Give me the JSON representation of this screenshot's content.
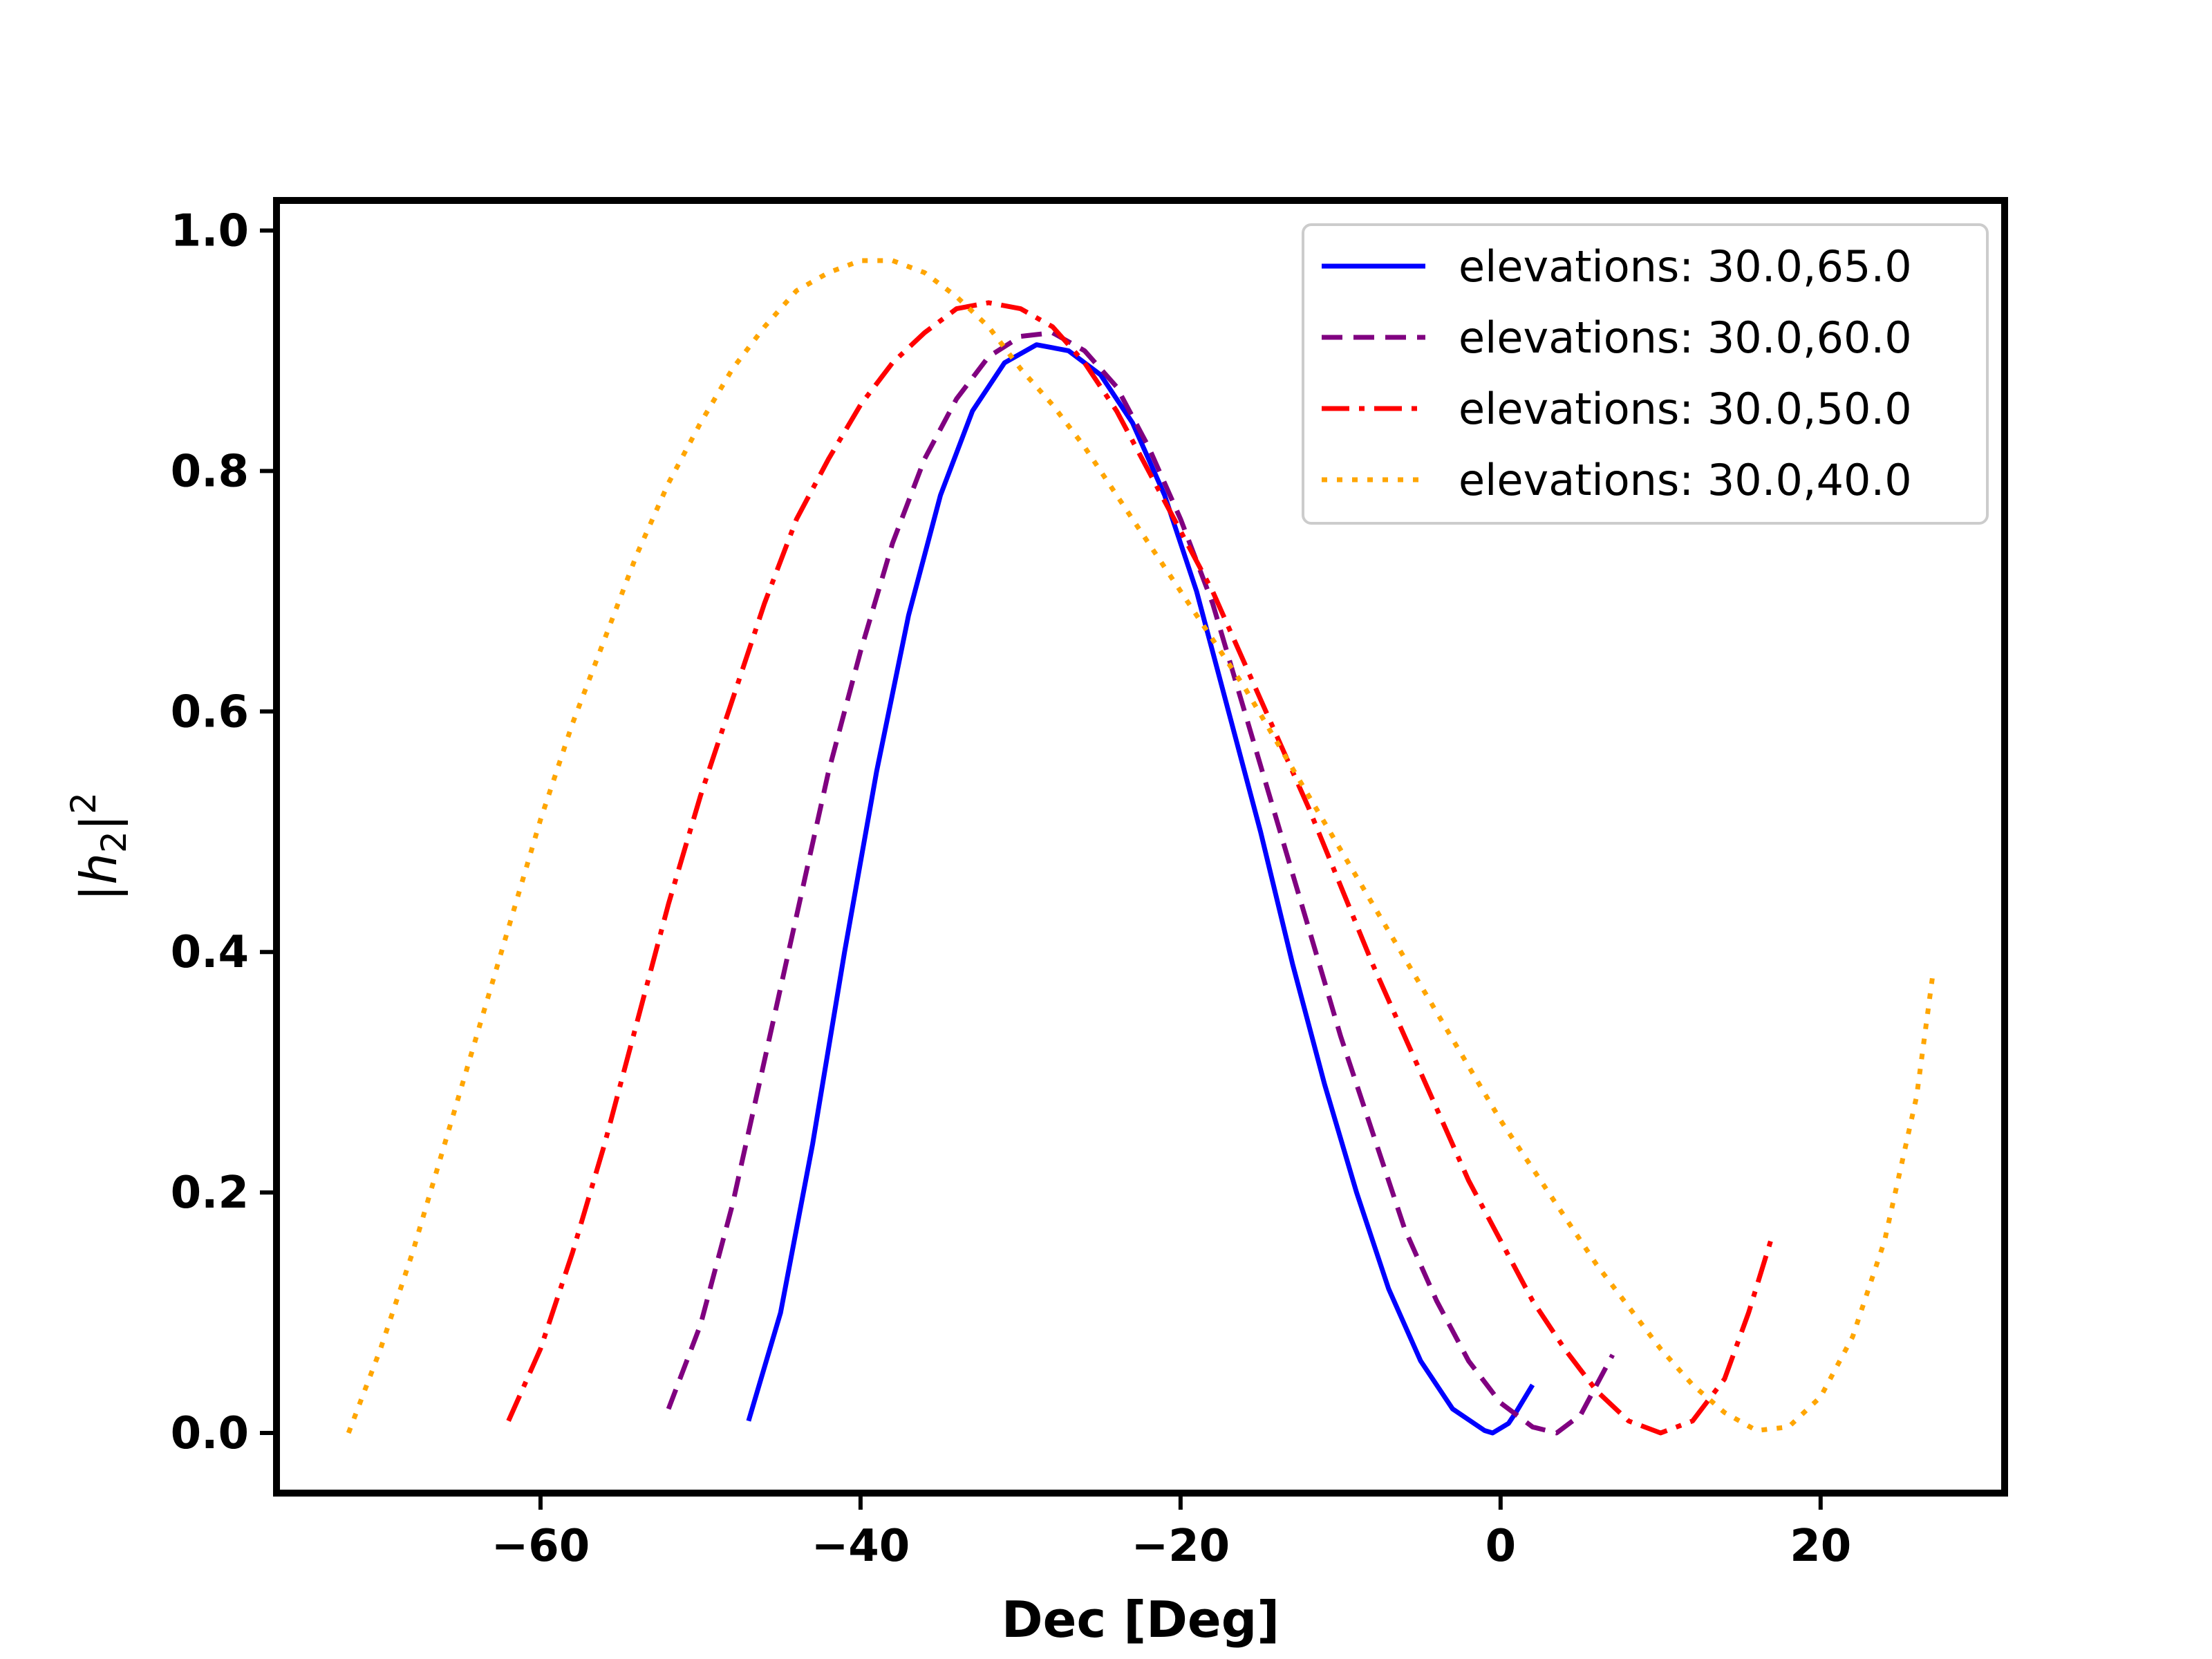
{
  "chart_data": {
    "type": "line",
    "xlabel": "Dec [Deg]",
    "ylabel": "|h2|^2",
    "ylabel_parts": {
      "bar_left": "|",
      "base": "h",
      "sub": "2",
      "bar_right": "|",
      "sup": "2"
    },
    "xlim": [
      -76.5,
      31.5
    ],
    "ylim": [
      -0.05,
      1.025
    ],
    "x_ticks": [
      -60,
      -40,
      -20,
      0,
      20
    ],
    "x_tick_labels": [
      "−60",
      "−40",
      "−20",
      "0",
      "20"
    ],
    "y_ticks": [
      0.0,
      0.2,
      0.4,
      0.6,
      0.8,
      1.0
    ],
    "y_tick_labels": [
      "0.0",
      "0.2",
      "0.4",
      "0.6",
      "0.8",
      "1.0"
    ],
    "grid": false,
    "legend_position": "top-right",
    "series": [
      {
        "name": "elevations: 30.0,65.0",
        "color": "#0000ff",
        "style": "solid",
        "x": [
          -47.0,
          -45.0,
          -43.0,
          -41.0,
          -39.0,
          -37.0,
          -35.0,
          -33.0,
          -31.0,
          -29.0,
          -27.0,
          -25.0,
          -23.0,
          -21.0,
          -19.0,
          -17.0,
          -15.0,
          -13.0,
          -11.0,
          -9.0,
          -7.0,
          -5.0,
          -3.0,
          -1.0,
          -0.5,
          0.5,
          1.0,
          2.0
        ],
        "y": [
          0.01,
          0.1,
          0.24,
          0.4,
          0.55,
          0.68,
          0.78,
          0.85,
          0.89,
          0.905,
          0.9,
          0.88,
          0.84,
          0.78,
          0.7,
          0.6,
          0.5,
          0.39,
          0.29,
          0.2,
          0.12,
          0.06,
          0.02,
          0.002,
          0.0,
          0.008,
          0.018,
          0.04
        ]
      },
      {
        "name": "elevations: 30.0,60.0",
        "color": "#800080",
        "style": "dashed",
        "x": [
          -52.0,
          -50.0,
          -48.0,
          -46.0,
          -44.0,
          -42.0,
          -40.0,
          -38.0,
          -36.0,
          -34.0,
          -32.0,
          -30.0,
          -28.0,
          -26.0,
          -24.0,
          -22.0,
          -20.0,
          -18.0,
          -16.0,
          -14.0,
          -12.0,
          -10.0,
          -8.0,
          -6.0,
          -4.0,
          -2.0,
          0.0,
          2.0,
          3.5,
          5.0,
          7.0
        ],
        "y": [
          0.02,
          0.09,
          0.19,
          0.31,
          0.43,
          0.55,
          0.65,
          0.74,
          0.81,
          0.86,
          0.895,
          0.912,
          0.915,
          0.9,
          0.87,
          0.82,
          0.76,
          0.69,
          0.6,
          0.51,
          0.42,
          0.33,
          0.25,
          0.17,
          0.11,
          0.06,
          0.025,
          0.005,
          0.0,
          0.015,
          0.065
        ]
      },
      {
        "name": "elevations: 30.0,50.0",
        "color": "#ff0000",
        "style": "dashdot",
        "x": [
          -62.0,
          -60.0,
          -58.0,
          -56.0,
          -54.0,
          -52.0,
          -50.0,
          -48.0,
          -46.0,
          -44.0,
          -42.0,
          -40.0,
          -38.0,
          -36.0,
          -34.0,
          -32.0,
          -30.0,
          -28.0,
          -26.0,
          -24.0,
          -22.0,
          -20.0,
          -18.0,
          -16.0,
          -14.0,
          -12.0,
          -10.0,
          -8.0,
          -6.0,
          -4.0,
          -2.0,
          0.0,
          2.0,
          4.0,
          6.0,
          8.0,
          10.0,
          12.0,
          14.0,
          15.5,
          17.0
        ],
        "y": [
          0.01,
          0.07,
          0.15,
          0.24,
          0.34,
          0.44,
          0.53,
          0.61,
          0.69,
          0.76,
          0.81,
          0.855,
          0.89,
          0.915,
          0.935,
          0.94,
          0.935,
          0.92,
          0.89,
          0.85,
          0.8,
          0.75,
          0.7,
          0.64,
          0.58,
          0.52,
          0.455,
          0.39,
          0.33,
          0.27,
          0.21,
          0.16,
          0.11,
          0.07,
          0.035,
          0.01,
          0.0,
          0.01,
          0.045,
          0.1,
          0.165
        ]
      },
      {
        "name": "elevations: 30.0,40.0",
        "color": "#ffa500",
        "style": "dotted",
        "x": [
          -72.0,
          -70.0,
          -68.0,
          -66.0,
          -64.0,
          -62.0,
          -60.0,
          -58.0,
          -56.0,
          -54.0,
          -52.0,
          -50.0,
          -48.0,
          -46.0,
          -44.0,
          -42.0,
          -40.0,
          -38.0,
          -36.0,
          -34.0,
          -32.0,
          -30.0,
          -28.0,
          -26.0,
          -24.0,
          -22.0,
          -20.0,
          -18.0,
          -16.0,
          -14.0,
          -12.0,
          -10.0,
          -8.0,
          -6.0,
          -4.0,
          -2.0,
          0.0,
          2.0,
          4.0,
          6.0,
          8.0,
          10.0,
          12.0,
          14.0,
          16.0,
          18.0,
          20.0,
          22.0,
          24.0,
          26.0,
          27.0
        ],
        "y": [
          0.0,
          0.07,
          0.15,
          0.24,
          0.33,
          0.42,
          0.51,
          0.59,
          0.66,
          0.73,
          0.79,
          0.84,
          0.885,
          0.92,
          0.95,
          0.965,
          0.975,
          0.975,
          0.965,
          0.945,
          0.92,
          0.885,
          0.855,
          0.82,
          0.78,
          0.74,
          0.7,
          0.66,
          0.62,
          0.575,
          0.53,
          0.485,
          0.44,
          0.395,
          0.35,
          0.305,
          0.26,
          0.22,
          0.18,
          0.14,
          0.105,
          0.07,
          0.04,
          0.017,
          0.002,
          0.005,
          0.03,
          0.08,
          0.16,
          0.28,
          0.38
        ]
      }
    ]
  }
}
